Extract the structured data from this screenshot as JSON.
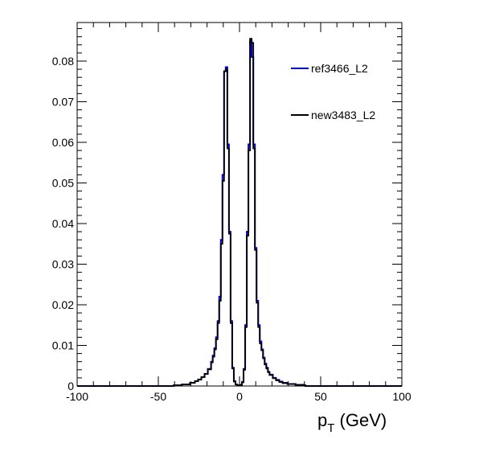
{
  "chart_data": {
    "type": "line",
    "title": "",
    "xlabel": {
      "main": "p",
      "sub": "T",
      "rest": " (GeV)"
    },
    "ylabel": "",
    "xlim": [
      -100,
      100
    ],
    "ylim": [
      0,
      0.0895
    ],
    "xticks": [
      -100,
      -50,
      0,
      50,
      100
    ],
    "xtick_labels": [
      "-100",
      "-50",
      "0",
      "50",
      "100"
    ],
    "yticks": [
      0,
      0.01,
      0.02,
      0.03,
      0.04,
      0.05,
      0.06,
      0.07,
      0.08
    ],
    "ytick_labels": [
      "0",
      "0.01",
      "0.02",
      "0.03",
      "0.04",
      "0.05",
      "0.06",
      "0.07",
      "0.08"
    ],
    "grid": false,
    "legend_position": "top-right",
    "bin_width": 1,
    "series": [
      {
        "name": "ref3466_L2",
        "color": "#0000cc",
        "style": "step",
        "x": [
          -40,
          -35,
          -30,
          -27,
          -25,
          -23,
          -21,
          -19,
          -17,
          -16,
          -15,
          -14,
          -13,
          -12,
          -11,
          -10,
          -9,
          -8,
          -7,
          -6,
          -5,
          -4,
          -3,
          -2,
          -1,
          0,
          1,
          2,
          3,
          4,
          5,
          6,
          7,
          8,
          9,
          10,
          11,
          12,
          13,
          14,
          15,
          16,
          17,
          18,
          19,
          21,
          23,
          25,
          27,
          30,
          35,
          40
        ],
        "values": [
          0.0002,
          0.0004,
          0.0008,
          0.0012,
          0.0016,
          0.0022,
          0.003,
          0.0042,
          0.006,
          0.0075,
          0.0093,
          0.012,
          0.016,
          0.022,
          0.036,
          0.052,
          0.0775,
          0.0785,
          0.0595,
          0.038,
          0.016,
          0.0045,
          0.0012,
          0.0004,
          0.0002,
          0.0002,
          0.0003,
          0.001,
          0.0042,
          0.015,
          0.038,
          0.0595,
          0.085,
          0.081,
          0.0595,
          0.034,
          0.021,
          0.015,
          0.011,
          0.009,
          0.007,
          0.0055,
          0.0045,
          0.0035,
          0.0028,
          0.002,
          0.0015,
          0.0011,
          0.0008,
          0.0005,
          0.0003,
          0.0002
        ]
      },
      {
        "name": "new3483_L2",
        "color": "#000000",
        "style": "step",
        "x": [
          -40,
          -35,
          -30,
          -27,
          -25,
          -23,
          -21,
          -19,
          -17,
          -16,
          -15,
          -14,
          -13,
          -12,
          -11,
          -10,
          -9,
          -8,
          -7,
          -6,
          -5,
          -4,
          -3,
          -2,
          -1,
          0,
          1,
          2,
          3,
          4,
          5,
          6,
          7,
          8,
          9,
          10,
          11,
          12,
          13,
          14,
          15,
          16,
          17,
          18,
          19,
          21,
          23,
          25,
          27,
          30,
          35,
          40
        ],
        "values": [
          0.0002,
          0.0004,
          0.0008,
          0.0012,
          0.0016,
          0.0022,
          0.003,
          0.0041,
          0.0058,
          0.0072,
          0.009,
          0.0115,
          0.0155,
          0.021,
          0.035,
          0.0505,
          0.0775,
          0.078,
          0.0585,
          0.0375,
          0.0155,
          0.0043,
          0.0011,
          0.0004,
          0.0002,
          0.0002,
          0.0003,
          0.0009,
          0.004,
          0.0145,
          0.037,
          0.058,
          0.0855,
          0.0845,
          0.0585,
          0.0335,
          0.0205,
          0.0145,
          0.0105,
          0.0088,
          0.0068,
          0.0053,
          0.0043,
          0.0034,
          0.0027,
          0.0019,
          0.0014,
          0.001,
          0.0007,
          0.0005,
          0.0003,
          0.0002
        ]
      }
    ]
  }
}
